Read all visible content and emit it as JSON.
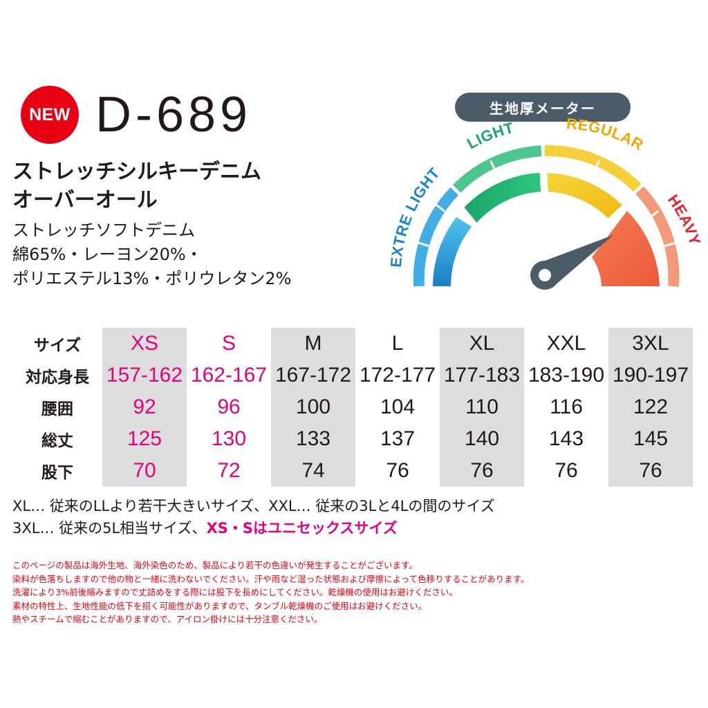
{
  "header": {
    "badge": "NEW",
    "model": "D-689",
    "name_lines": [
      "ストレッチシルキーデニム",
      "オーバーオール"
    ],
    "fabric_lines": [
      "ストレッチソフトデニム",
      "綿65%・レーヨン20%・",
      "ポリエステル13%・ポリウレタン2%"
    ]
  },
  "meter": {
    "title": "生地厚メーター",
    "levels": [
      "EXTRE LIGHT",
      "LIGHT",
      "REGULAR",
      "HEAVY"
    ],
    "selected": "HEAVY",
    "colors": {
      "extra_light": "#1d96d4",
      "light": "#22b573",
      "regular": "#f2c91b",
      "heavy": "#ef6a45",
      "needle": "#4b5b68"
    }
  },
  "size_table": {
    "row_headers": [
      "サイズ",
      "対応身長",
      "腰囲",
      "総丈",
      "股下"
    ],
    "columns": [
      {
        "size": "XS",
        "height": "157-162",
        "hip": "92",
        "length": "125",
        "inseam": "70"
      },
      {
        "size": "S",
        "height": "162-167",
        "hip": "96",
        "length": "130",
        "inseam": "72"
      },
      {
        "size": "M",
        "height": "167-172",
        "hip": "100",
        "length": "133",
        "inseam": "74"
      },
      {
        "size": "L",
        "height": "172-177",
        "hip": "104",
        "length": "137",
        "inseam": "76"
      },
      {
        "size": "XL",
        "height": "177-183",
        "hip": "110",
        "length": "140",
        "inseam": "76"
      },
      {
        "size": "XXL",
        "height": "183-190",
        "hip": "116",
        "length": "143",
        "inseam": "76"
      },
      {
        "size": "3XL",
        "height": "190-197",
        "hip": "122",
        "length": "145",
        "inseam": "76"
      }
    ],
    "highlight_color": "#e4007f",
    "shade_color": "#dcdddd"
  },
  "notes": {
    "line1": "XL… 従来のLLより若干大きいサイズ、XXL… 従来の3Lと4Lの間のサイズ",
    "line2_prefix": "3XL… 従来の5L相当サイズ、",
    "line2_highlight": "XS・Sはユニセックスサイズ"
  },
  "care_notes": [
    "このページの製品は海外生地、海外染色のため、製品により若干の色違いが発生することがございます。",
    "染料が色落ちしますので他の物と一緒に洗わないでください。汗や雨など湿った状態および摩擦によって色移りすることがあります。",
    "洗濯により3%前後縮みますので丈詰めをする際には股下を長めにしてください。乾燥機の使用はお避けください。",
    "素材の特性上、生地性能の低下を招く可能性がありますので、タンブル乾燥機のご使用はお避けください。",
    "熱やスチームで縮むことがありますので、アイロン掛けには十分注意ください。"
  ]
}
